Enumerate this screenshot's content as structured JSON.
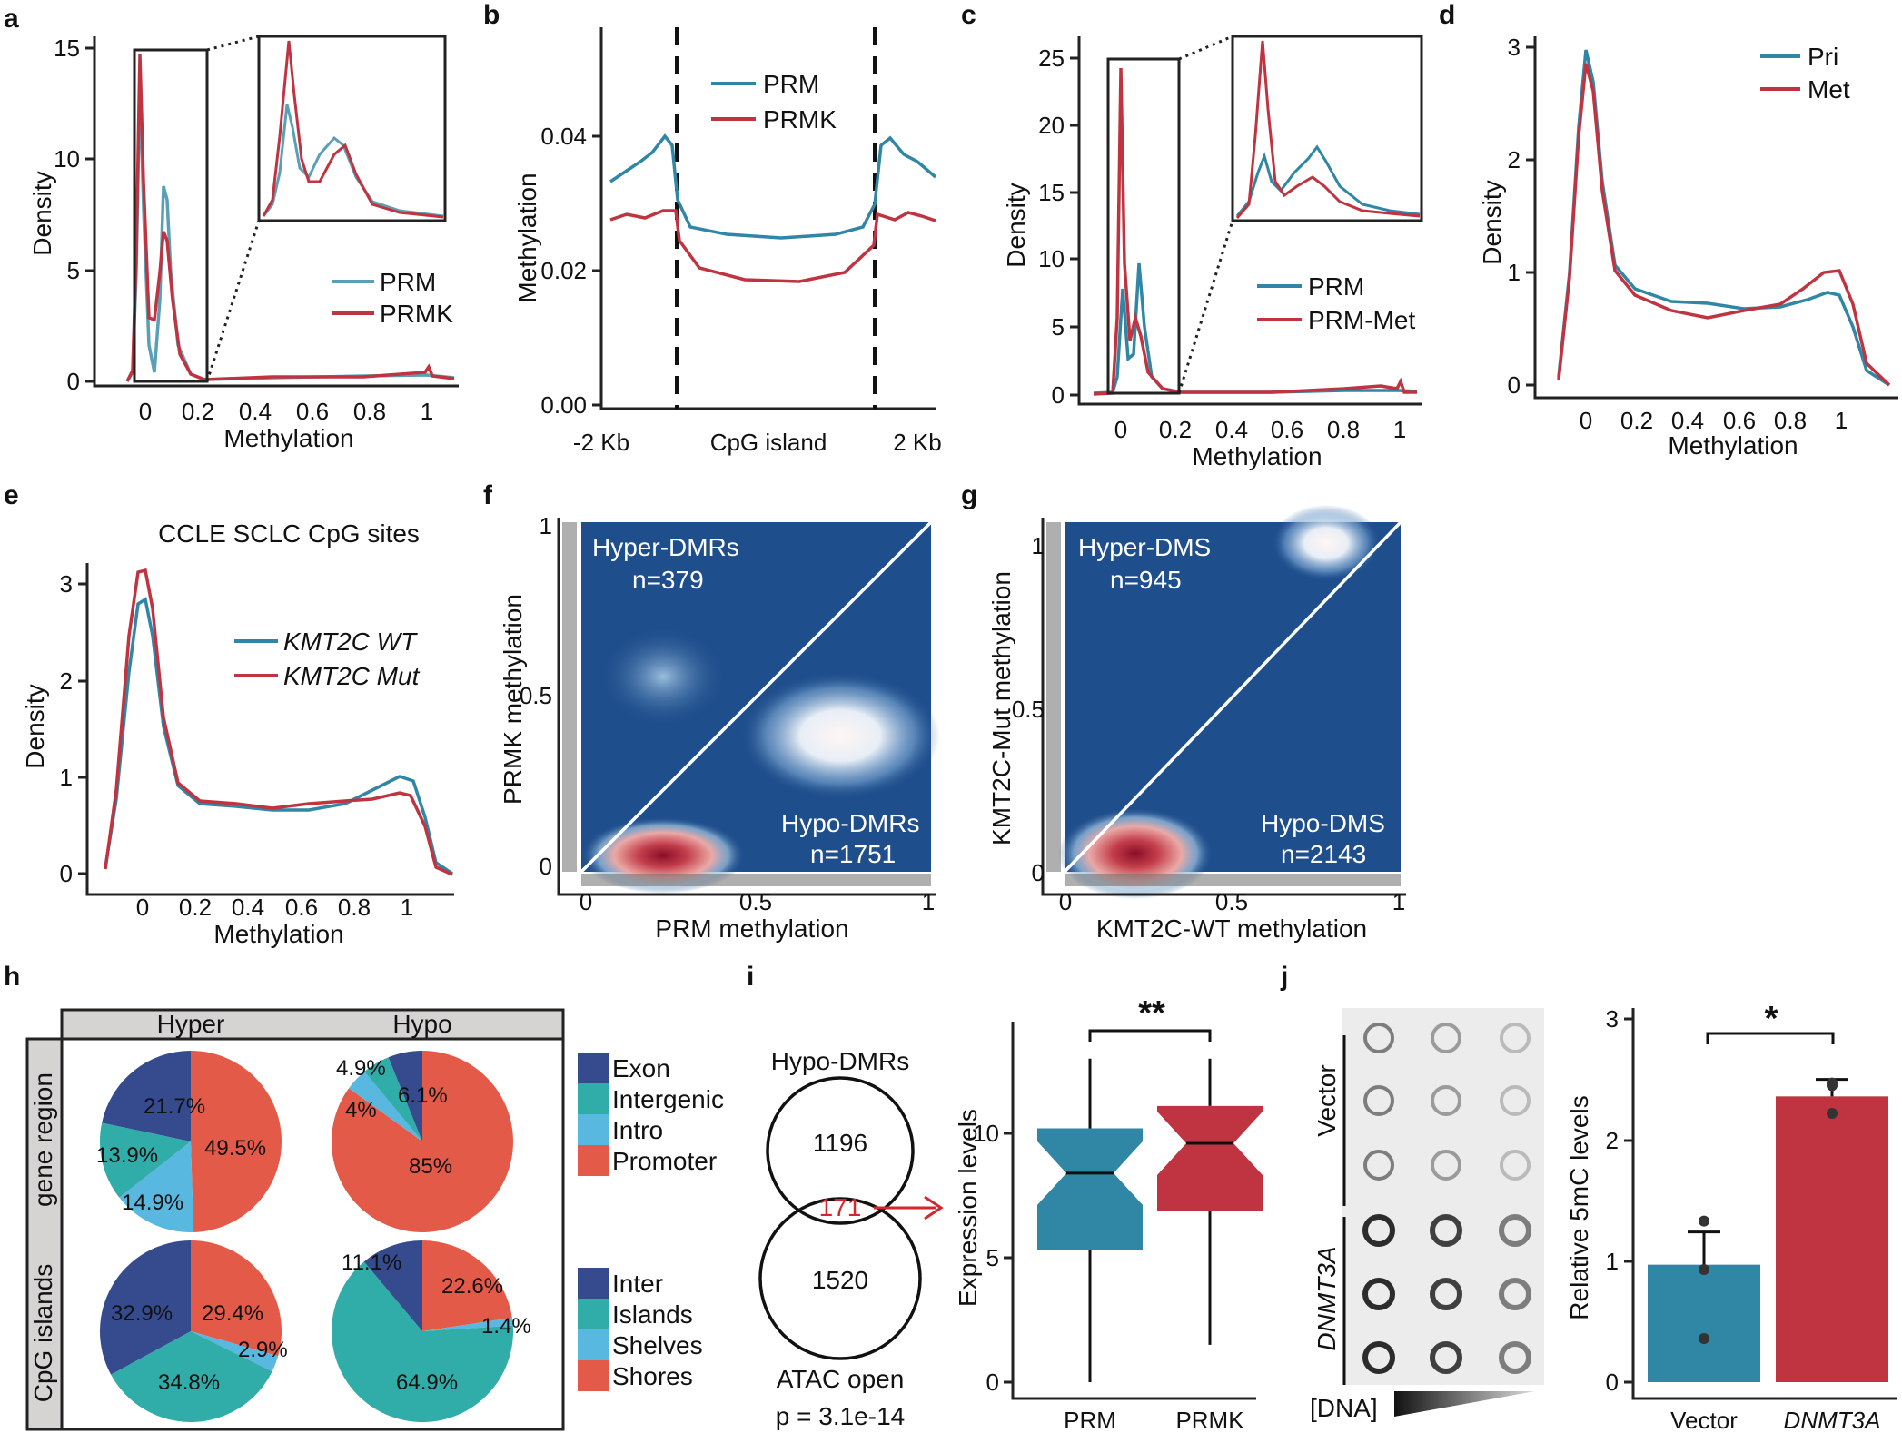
{
  "colors": {
    "teal": "#2f86a5",
    "red": "#bf3440",
    "darkblue": "#364a8e",
    "green": "#30ada8",
    "lightblue": "#58b8e0",
    "orange": "#e35a49"
  },
  "chart_data": [
    {
      "id": "a",
      "type": "line",
      "xlabel": "Methylation",
      "ylabel": "Density",
      "xlim": [
        -0.1,
        1.1
      ],
      "ylim": [
        0,
        15
      ],
      "xticks": [
        "0",
        "0.2",
        "0.4",
        "0.6",
        "0.8",
        "1"
      ],
      "yticks": [
        "0",
        "5",
        "10",
        "15"
      ],
      "series": [
        {
          "name": "PRM",
          "color": "#5aa0b5"
        },
        {
          "name": "PRMK",
          "color": "#bf3440"
        }
      ],
      "peaks": {
        "PRM": [
          [
            0,
            13.5
          ],
          [
            0.07,
            8.7
          ]
        ],
        "PRMK": [
          [
            0,
            14.6
          ],
          [
            0.07,
            6.3
          ]
        ]
      },
      "inset_range": [
        0,
        0.2
      ]
    },
    {
      "id": "b",
      "type": "line",
      "xlabel": "",
      "ylabel": "Methylation",
      "ylim": [
        0,
        0.05
      ],
      "xticks": [
        "-2 Kb",
        "CpG island",
        "2 Kb"
      ],
      "yticks": [
        "0.00",
        "0.02",
        "0.04"
      ],
      "series": [
        {
          "name": "PRM",
          "color": "#2f86a5",
          "flank": 0.036,
          "island": 0.025
        },
        {
          "name": "PRMK",
          "color": "#bf3440",
          "flank": 0.028,
          "island": 0.019
        }
      ]
    },
    {
      "id": "c",
      "type": "line",
      "xlabel": "Methylation",
      "ylabel": "Density",
      "xlim": [
        -0.1,
        1.1
      ],
      "ylim": [
        0,
        25
      ],
      "xticks": [
        "0",
        "0.2",
        "0.4",
        "0.6",
        "0.8",
        "1"
      ],
      "yticks": [
        "0",
        "5",
        "10",
        "15",
        "20",
        "25"
      ],
      "series": [
        {
          "name": "PRM",
          "color": "#2f86a5"
        },
        {
          "name": "PRM-Met",
          "color": "#bf3440"
        }
      ],
      "peaks": {
        "PRM": [
          [
            0.02,
            8
          ],
          [
            0.08,
            9.7
          ]
        ],
        "PRM-Met": [
          [
            0,
            24
          ],
          [
            0.06,
            5.5
          ]
        ]
      },
      "inset_range": [
        0,
        0.2
      ]
    },
    {
      "id": "d",
      "type": "line",
      "xlabel": "Methylation",
      "ylabel": "Density",
      "xlim": [
        -0.1,
        1.2
      ],
      "ylim": [
        0,
        3
      ],
      "xticks": [
        "0",
        "0.2",
        "0.4",
        "0.6",
        "0.8",
        "1"
      ],
      "yticks": [
        "0",
        "1",
        "2",
        "3"
      ],
      "series": [
        {
          "name": "Pri",
          "color": "#2f86a5"
        },
        {
          "name": "Met",
          "color": "#bf3440"
        }
      ],
      "peaks": {
        "Pri": [
          [
            0,
            3.0
          ],
          [
            0.98,
            0.8
          ]
        ],
        "Met": [
          [
            0,
            2.85
          ],
          [
            0.98,
            1.03
          ]
        ]
      }
    },
    {
      "id": "e",
      "type": "line",
      "title": "CCLE SCLC CpG sites",
      "xlabel": "Methylation",
      "ylabel": "Density",
      "xlim": [
        -0.2,
        1.2
      ],
      "ylim": [
        0,
        3
      ],
      "xticks": [
        "0",
        "0.2",
        "0.4",
        "0.6",
        "0.8",
        "1"
      ],
      "yticks": [
        "0",
        "1",
        "2",
        "3"
      ],
      "series": [
        {
          "name": "KMT2C WT",
          "color": "#2f86a5"
        },
        {
          "name": "KMT2C Mut",
          "color": "#bf3440"
        }
      ],
      "peaks": {
        "KMT2C WT": [
          [
            0,
            2.85
          ],
          [
            0.96,
            1.0
          ]
        ],
        "KMT2C Mut": [
          [
            0,
            3.15
          ],
          [
            0.97,
            0.83
          ]
        ]
      }
    },
    {
      "id": "f",
      "type": "heatmap",
      "xlabel": "PRM methylation",
      "ylabel": "PRMK methylation",
      "xticks": [
        "0",
        "0.5",
        "1"
      ],
      "yticks": [
        "0",
        "0.5",
        "1"
      ],
      "annotations": [
        "Hyper-DMRs",
        "n=379",
        "Hypo-DMRs",
        "n=1751"
      ]
    },
    {
      "id": "g",
      "type": "heatmap",
      "xlabel": "KMT2C-WT methylation",
      "ylabel": "KMT2C-Mut methylation",
      "xticks": [
        "0",
        "0.5",
        "1"
      ],
      "yticks": [
        "0",
        "0.5",
        "1"
      ],
      "annotations": [
        "Hyper-DMS",
        "n=945",
        "Hypo-DMS",
        "n=2143"
      ]
    },
    {
      "id": "h",
      "type": "pie",
      "columns": [
        "Hyper",
        "Hypo"
      ],
      "rows": [
        "gene region",
        "CpG islands"
      ],
      "legend1": [
        "Exon",
        "Intergenic",
        "Intro",
        "Promoter"
      ],
      "legend2": [
        "Inter",
        "Islands",
        "Shelves",
        "Shores"
      ],
      "pies": [
        {
          "row": "gene region",
          "col": "Hyper",
          "slices": [
            {
              "label": "Promoter",
              "value": 49.5,
              "text": "49.5%"
            },
            {
              "label": "Intro",
              "value": 14.9,
              "text": "14.9%"
            },
            {
              "label": "Intergenic",
              "value": 13.9,
              "text": "13.9%"
            },
            {
              "label": "Exon",
              "value": 21.7,
              "text": "21.7%"
            }
          ]
        },
        {
          "row": "gene region",
          "col": "Hypo",
          "slices": [
            {
              "label": "Promoter",
              "value": 85,
              "text": "85%"
            },
            {
              "label": "Intro",
              "value": 4,
              "text": "4%"
            },
            {
              "label": "Intergenic",
              "value": 4.9,
              "text": "4.9%"
            },
            {
              "label": "Exon",
              "value": 6.1,
              "text": "6.1%"
            }
          ]
        },
        {
          "row": "CpG islands",
          "col": "Hyper",
          "slices": [
            {
              "label": "Shores",
              "value": 29.4,
              "text": "29.4%"
            },
            {
              "label": "Shelves",
              "value": 2.9,
              "text": "2.9%"
            },
            {
              "label": "Islands",
              "value": 34.8,
              "text": "34.8%"
            },
            {
              "label": "Inter",
              "value": 32.9,
              "text": "32.9%"
            }
          ]
        },
        {
          "row": "CpG islands",
          "col": "Hypo",
          "slices": [
            {
              "label": "Shores",
              "value": 22.6,
              "text": "22.6%"
            },
            {
              "label": "Shelves",
              "value": 1.4,
              "text": "1.4%"
            },
            {
              "label": "Islands",
              "value": 64.9,
              "text": "64.9%"
            },
            {
              "label": "Inter",
              "value": 11.1,
              "text": "11.1%"
            }
          ]
        }
      ]
    },
    {
      "id": "i-venn",
      "type": "venn",
      "sets": [
        "Hypo-DMRs",
        "ATAC open"
      ],
      "values": [
        "1196",
        "171",
        "1520"
      ],
      "pvalue": "p = 3.1e-14"
    },
    {
      "id": "i-box",
      "type": "box",
      "categories": [
        "PRM",
        "PRMK"
      ],
      "ylabel": "Expression levels",
      "ylim": [
        0,
        14
      ],
      "yticks": [
        "0",
        "5",
        "10"
      ],
      "significance": "**",
      "boxes": [
        {
          "name": "PRM",
          "min": 0,
          "q1": 5.3,
          "median": 8.4,
          "q3": 10.2,
          "max": 13,
          "color": "#2f86a5"
        },
        {
          "name": "PRMK",
          "min": 1.5,
          "q1": 6.9,
          "median": 9.6,
          "q3": 11.1,
          "max": 13,
          "color": "#bf3440"
        }
      ]
    },
    {
      "id": "j-blot",
      "type": "dot-blot",
      "row_labels": [
        "Vector",
        "DNMT3A"
      ],
      "xlabel": "[DNA]"
    },
    {
      "id": "j-bar",
      "type": "bar",
      "categories": [
        "Vector",
        "DNMT3A"
      ],
      "values": [
        0.97,
        2.36
      ],
      "errors": [
        0.27,
        0.14
      ],
      "points": [
        [
          1.33,
          0.93,
          0.36
        ],
        [
          2.47,
          2.45,
          2.22
        ]
      ],
      "ylabel": "Relative 5mC levels",
      "ylim": [
        0,
        3
      ],
      "yticks": [
        "0",
        "1",
        "2",
        "3"
      ],
      "significance": "*"
    }
  ],
  "panels": [
    "a",
    "b",
    "c",
    "d",
    "e",
    "f",
    "g",
    "h",
    "i",
    "j"
  ]
}
